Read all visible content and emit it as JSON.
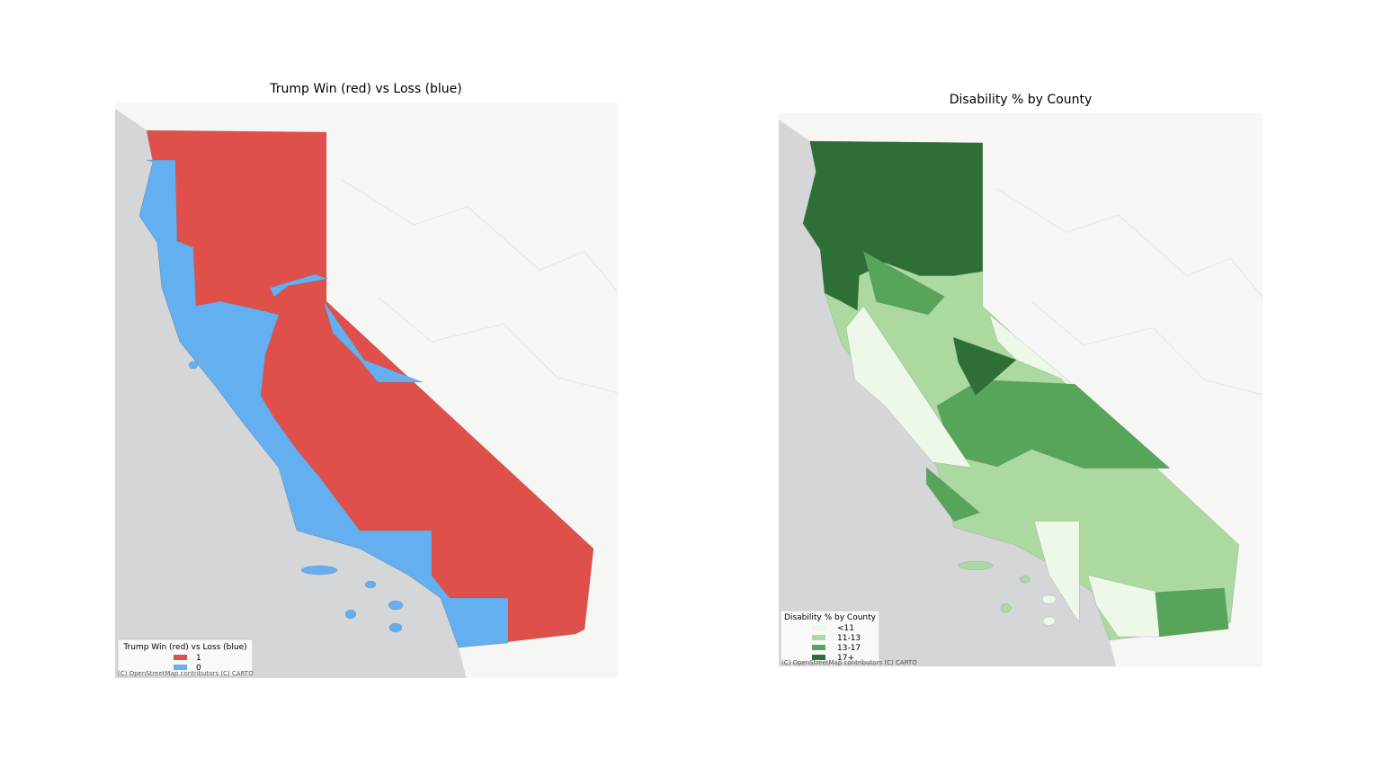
{
  "maps": [
    {
      "title": "Trump Win (red) vs Loss (blue)",
      "legend": {
        "title": "Trump Win (red) vs Loss (blue)",
        "items": [
          {
            "label": "1",
            "color": "#e0504a"
          },
          {
            "label": "0",
            "color": "#63aff0"
          }
        ]
      },
      "attribution": "(C) OpenStreetMap contributors (C) CARTO"
    },
    {
      "title": "Disability % by County",
      "legend": {
        "title": "Disability % by County",
        "items": [
          {
            "label": "<11",
            "color": "#edf8e9"
          },
          {
            "label": "11-13",
            "color": "#abd9a0"
          },
          {
            "label": "13-17",
            "color": "#57a55b"
          },
          {
            "label": "17+",
            "color": "#2e6f38"
          }
        ]
      },
      "attribution": "(C) OpenStreetMap contributors (C) CARTO"
    }
  ]
}
